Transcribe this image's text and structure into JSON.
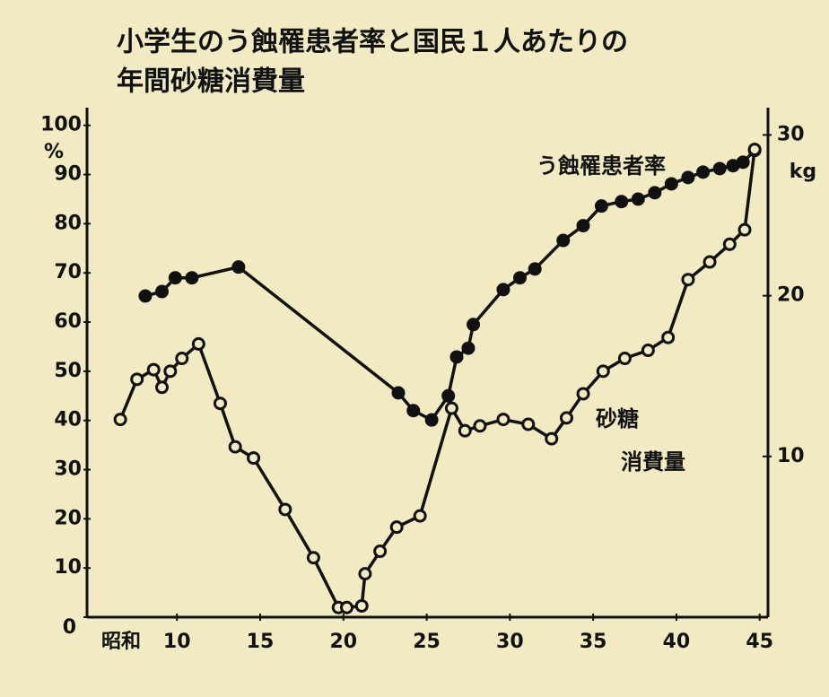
{
  "chart_data": {
    "type": "line",
    "title": [
      "小学生のう蝕罹患者率と国民１人あたりの",
      "年間砂糖消費量"
    ],
    "xlabel": "昭和",
    "ylabel": "%",
    "y2label": "kg",
    "xlim": [
      4.6,
      45.5
    ],
    "xticks": [
      10,
      15,
      20,
      25,
      30,
      35,
      40,
      45
    ],
    "ylim": [
      0,
      103.6
    ],
    "yticks": [
      0,
      10,
      20,
      30,
      40,
      50,
      60,
      70,
      80,
      90,
      100
    ],
    "y2lim": [
      0,
      31.7
    ],
    "y2ticks": [
      10,
      20,
      30
    ],
    "series": [
      {
        "name": "う蝕罹患者率",
        "color": "#111111",
        "marker": "filled",
        "x": [
          8.1,
          9.1,
          9.9,
          10.9,
          13.7,
          23.3,
          24.2,
          25.3,
          26.3,
          26.8,
          27.5,
          27.8,
          29.6,
          30.6,
          31.5,
          33.2,
          34.4,
          35.5,
          36.7,
          37.7,
          38.7,
          39.7,
          40.7,
          41.6,
          42.6,
          43.4,
          44.0,
          44.7
        ],
        "values": [
          65.3,
          66.2,
          69.0,
          69.0,
          71.2,
          45.6,
          42.0,
          40.1,
          45.0,
          52.9,
          54.7,
          59.5,
          66.6,
          69.0,
          70.8,
          76.6,
          79.6,
          83.6,
          84.5,
          85.0,
          86.3,
          88.1,
          89.4,
          90.5,
          91.2,
          91.8,
          92.5,
          94.9
        ]
      },
      {
        "name": [
          "砂糖",
          "消費量"
        ],
        "color": "#111111",
        "marker": "hollow",
        "axis": "y2",
        "x": [
          6.6,
          7.6,
          8.6,
          9.1,
          9.6,
          10.3,
          11.3,
          12.6,
          13.5,
          14.6,
          16.5,
          18.2,
          19.7,
          20.2,
          21.1,
          21.3,
          22.2,
          23.2,
          24.6,
          26.5,
          27.3,
          28.2,
          29.6,
          31.1,
          32.5,
          33.4,
          34.4,
          35.6,
          36.9,
          38.3,
          39.5,
          40.7,
          42.0,
          43.2,
          44.1,
          44.7
        ],
        "values": [
          12.3,
          14.8,
          15.4,
          14.3,
          15.3,
          16.1,
          17.0,
          13.3,
          10.6,
          9.9,
          6.7,
          3.7,
          0.6,
          0.6,
          0.7,
          2.7,
          4.1,
          5.6,
          6.3,
          13.0,
          11.6,
          11.9,
          12.3,
          12.0,
          11.1,
          12.4,
          13.9,
          15.3,
          16.1,
          16.6,
          17.4,
          21.0,
          22.1,
          23.2,
          24.1,
          29.1
        ]
      }
    ]
  }
}
